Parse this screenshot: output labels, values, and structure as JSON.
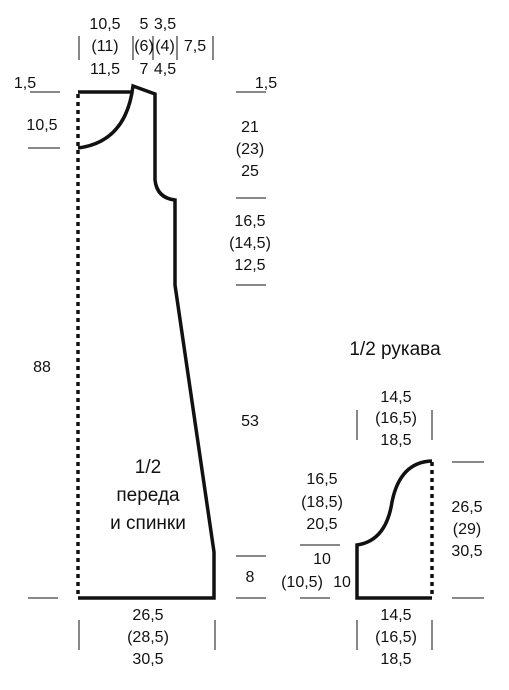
{
  "body": {
    "title": [
      "1/2",
      "переда",
      "и спинки"
    ],
    "neck_width": [
      "10,5",
      "(11)",
      "11,5"
    ],
    "shoulder_a": [
      "5",
      "(6)",
      "7"
    ],
    "shoulder_b": [
      "3,5",
      "(4)",
      "4,5"
    ],
    "top_side": "7,5",
    "left_top": "1,5",
    "neck_depth": "10,5",
    "total_length": "88",
    "right_top": "1,5",
    "armhole": [
      "21",
      "(23)",
      "25"
    ],
    "upper_side": [
      "16,5",
      "(14,5)",
      "12,5"
    ],
    "lower_side": "53",
    "hem": "8",
    "bottom_width": [
      "26,5",
      "(28,5)",
      "30,5"
    ]
  },
  "sleeve": {
    "title": "1/2 рукава",
    "top_width": [
      "14,5",
      "(16,5)",
      "18,5"
    ],
    "cap": [
      "16,5",
      "(18,5)",
      "20,5"
    ],
    "lower": [
      "10",
      "(10,5)",
      "10"
    ],
    "height": [
      "26,5",
      "(29)",
      "30,5"
    ],
    "bottom_width": [
      "14,5",
      "(16,5)",
      "18,5"
    ]
  }
}
